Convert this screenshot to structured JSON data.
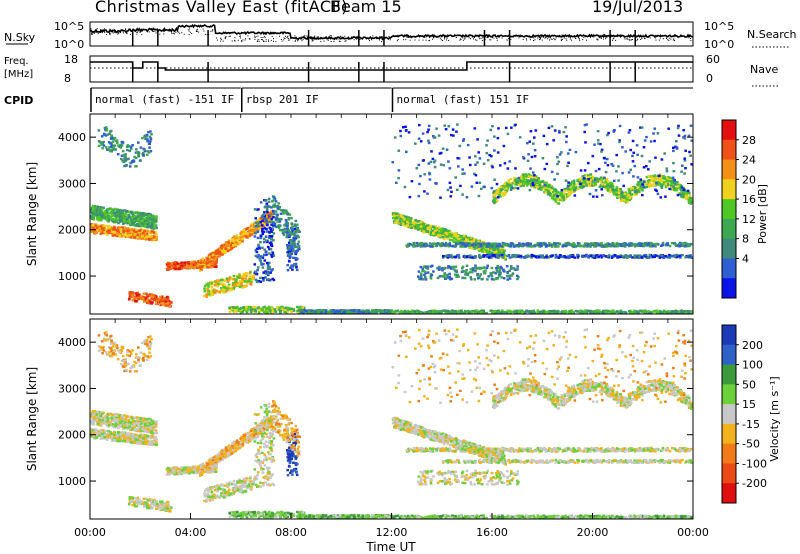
{
  "header": {
    "title": "Christmas Valley East (fitACF)",
    "beam": "Beam 15",
    "date": "19/Jul/2013"
  },
  "top_panels": {
    "sky": {
      "left_label": "N.Sky",
      "right_label": "N.Search",
      "left_ticks": [
        "10^5",
        "10^0"
      ],
      "right_ticks": [
        "10^5",
        "10^0"
      ]
    },
    "freq": {
      "left_label_line1": "Freq.",
      "left_label_line2": "[MHz]",
      "right_label": "Nave",
      "left_ticks": [
        "18",
        "8"
      ],
      "right_ticks": [
        "60",
        "0"
      ]
    },
    "cpid": {
      "label": "CPID",
      "segments": [
        {
          "start_hour": 0.0,
          "end_hour": 6.0,
          "label": "normal (fast) -151 IF"
        },
        {
          "start_hour": 6.0,
          "end_hour": 12.0,
          "label": "rbsp 201 IF"
        },
        {
          "start_hour": 12.0,
          "end_hour": 24.0,
          "label": "normal (fast) 151 IF"
        }
      ]
    }
  },
  "chart_data": [
    {
      "type": "heatmap",
      "name": "power",
      "xlabel": "",
      "ylabel": "Slant Range [km]",
      "xlim": [
        0,
        24
      ],
      "ylim": [
        180,
        4500
      ],
      "y_ticks": [
        1000,
        2000,
        3000,
        4000
      ],
      "colorbar": {
        "label": "Power [dB]",
        "ticks": [
          "4",
          "8",
          "12",
          "16",
          "20",
          "24",
          "28"
        ],
        "colors": [
          "#0a14e6",
          "#2f5fd0",
          "#3f8a7a",
          "#3ca850",
          "#4ec826",
          "#f0d21e",
          "#f39018",
          "#ee5218",
          "#e40f0f"
        ]
      }
    },
    {
      "type": "heatmap",
      "name": "velocity",
      "xlabel": "Time UT",
      "ylabel": "Slant Range [km]",
      "xlim": [
        0,
        24
      ],
      "ylim": [
        180,
        4500
      ],
      "x_ticks": [
        "00:00",
        "04:00",
        "08:00",
        "12:00",
        "16:00",
        "20:00",
        "00:00"
      ],
      "y_ticks": [
        1000,
        2000,
        3000,
        4000
      ],
      "colorbar": {
        "label": "Velocity [m s⁻¹]",
        "ticks": [
          "200",
          "100",
          "50",
          "15",
          "-15",
          "-50",
          "-100",
          "-200"
        ],
        "colors": [
          "#1a3ab8",
          "#2e62c8",
          "#3b9a3b",
          "#6cd03a",
          "#c8c8c8",
          "#f2b21c",
          "#f17b18",
          "#eb4a16",
          "#e00f0f"
        ]
      }
    }
  ]
}
